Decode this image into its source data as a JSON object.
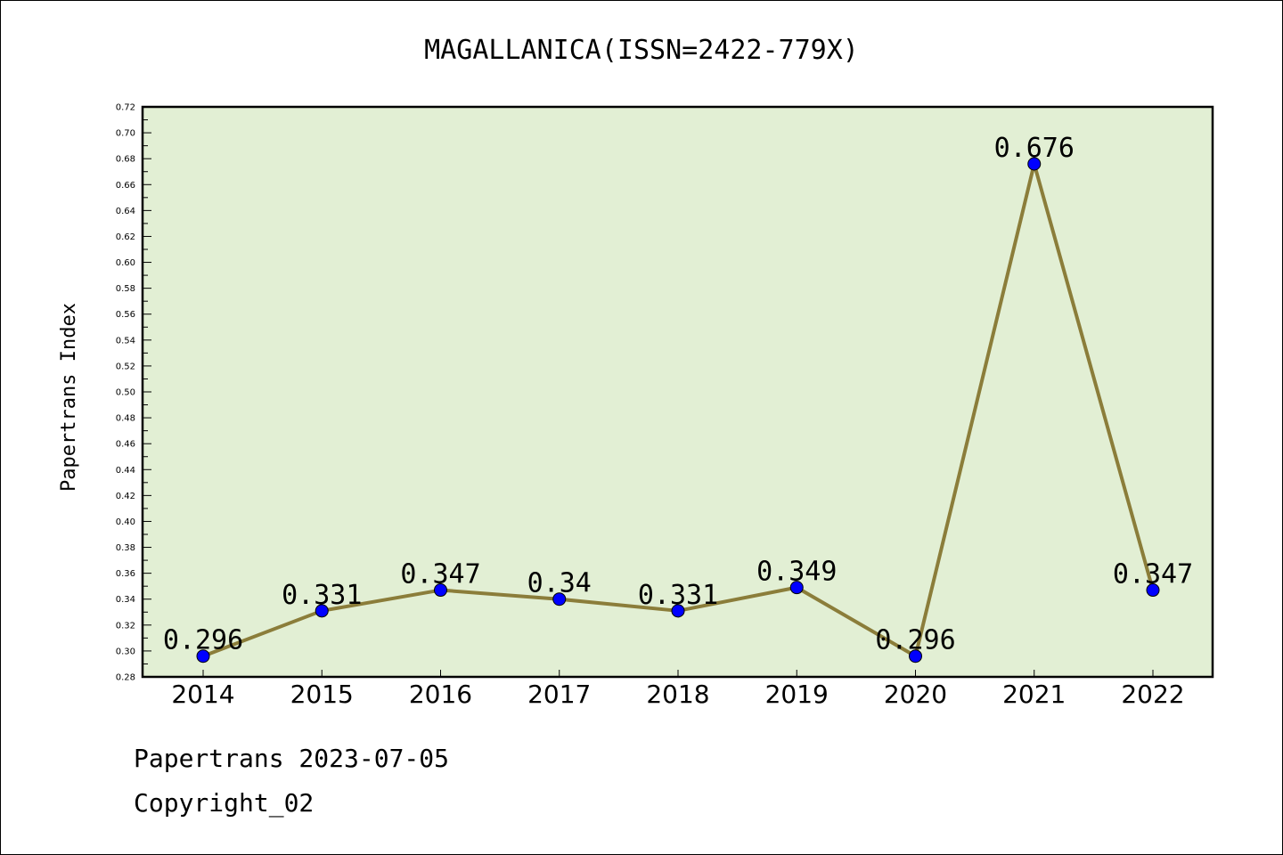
{
  "chart_data": {
    "type": "line",
    "title": "MAGALLANICA(ISSN=2422-779X)",
    "xlabel": "",
    "ylabel": "Papertrans Index",
    "categories": [
      "2014",
      "2015",
      "2016",
      "2017",
      "2018",
      "2019",
      "2020",
      "2021",
      "2022"
    ],
    "values": [
      0.296,
      0.331,
      0.347,
      0.34,
      0.331,
      0.349,
      0.296,
      0.676,
      0.347
    ],
    "data_labels": [
      "0.296",
      "0.331",
      "0.347",
      "0.34",
      "0.331",
      "0.349",
      "0.296",
      "0.676",
      "0.347"
    ],
    "ylim": [
      0.28,
      0.72
    ],
    "yticks": [
      "0.28",
      "0.30",
      "0.32",
      "0.34",
      "0.36",
      "0.38",
      "0.40",
      "0.42",
      "0.44",
      "0.46",
      "0.48",
      "0.50",
      "0.52",
      "0.54",
      "0.56",
      "0.58",
      "0.60",
      "0.62",
      "0.64",
      "0.66",
      "0.68",
      "0.70",
      "0.72"
    ],
    "grid": false,
    "colors": {
      "plot_background": "#e2efd4",
      "line": "#8b7d3a",
      "marker": "#0000ff"
    }
  },
  "footer": {
    "date_line": "Papertrans 2023-07-05",
    "copyright": "Copyright_02"
  }
}
